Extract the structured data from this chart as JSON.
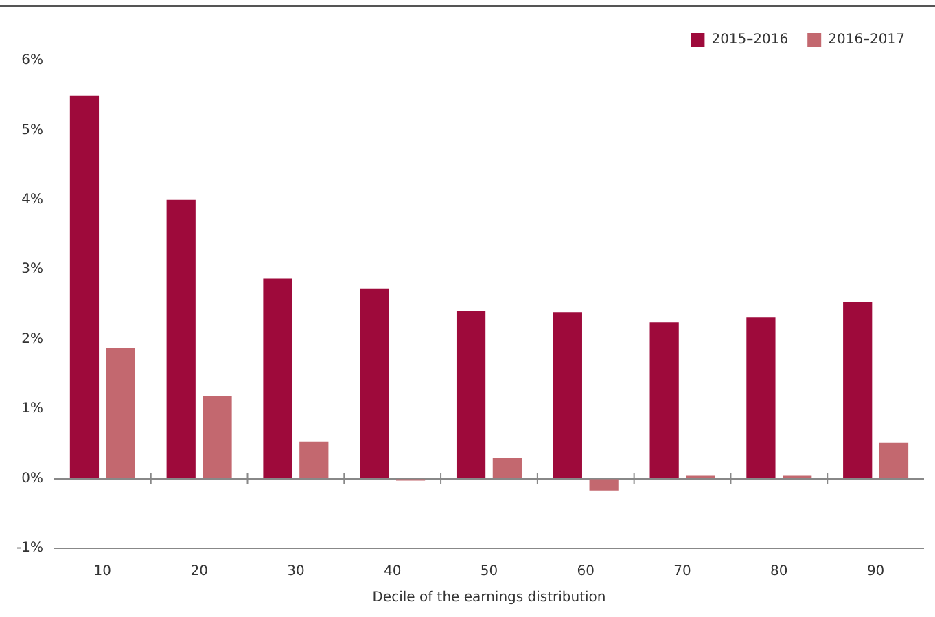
{
  "chart_data": {
    "type": "bar",
    "xlabel": "Decile of the earnings distribution",
    "categories": [
      "10",
      "20",
      "30",
      "40",
      "50",
      "60",
      "70",
      "80",
      "90"
    ],
    "series": [
      {
        "name": "2015–2016",
        "color": "#9e0a3b",
        "values": [
          5.5,
          4.0,
          2.87,
          2.73,
          2.41,
          2.39,
          2.24,
          2.31,
          2.54
        ]
      },
      {
        "name": "2016–2017",
        "color": "#c3686f",
        "values": [
          1.88,
          1.18,
          0.53,
          -0.03,
          0.3,
          -0.17,
          0.04,
          0.04,
          0.51
        ]
      }
    ],
    "ylim": [
      -1,
      6
    ],
    "yticks": [
      {
        "value": -1,
        "label": "-1%"
      },
      {
        "value": 0,
        "label": "0%"
      },
      {
        "value": 1,
        "label": "1%"
      },
      {
        "value": 2,
        "label": "2%"
      },
      {
        "value": 3,
        "label": "3%"
      },
      {
        "value": 4,
        "label": "4%"
      },
      {
        "value": 5,
        "label": "5%"
      },
      {
        "value": 6,
        "label": "6%"
      }
    ],
    "legend": "top right"
  }
}
